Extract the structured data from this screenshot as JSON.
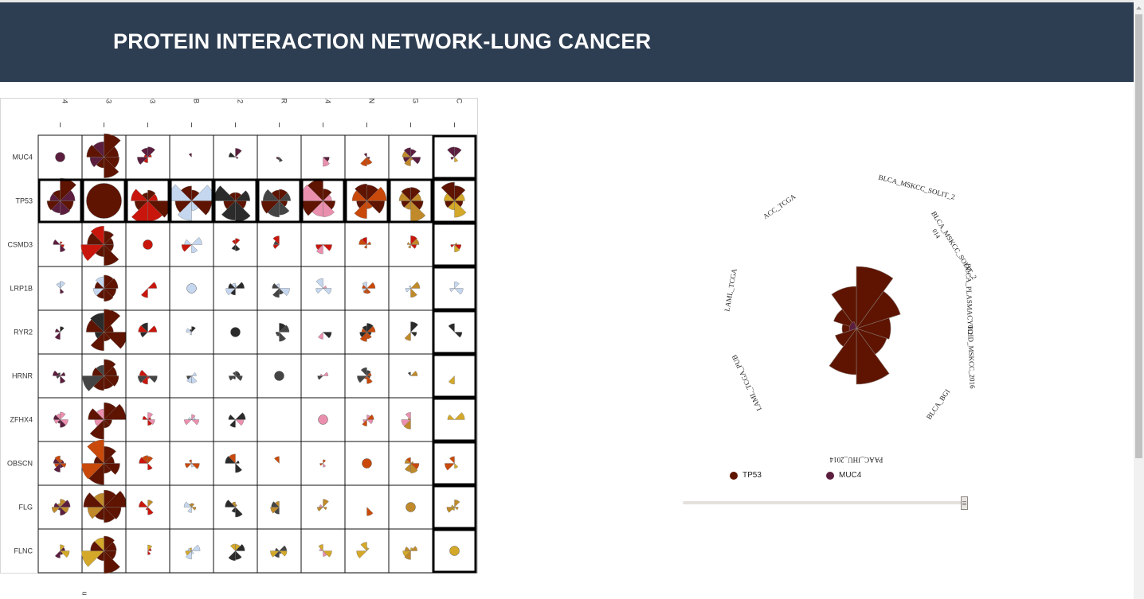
{
  "header": {
    "title": "PROTEIN INTERACTION NETWORK-LUNG CANCER"
  },
  "matrix": {
    "genes": [
      "MUC4",
      "TP53",
      "CSMD3",
      "LRP1B",
      "RYR2",
      "HRNR",
      "ZFHX4",
      "OBSCN",
      "FLG",
      "FLNC"
    ],
    "colors": {
      "MUC4": "#5c1e3e",
      "TP53": "#5e1400",
      "CSMD3": "#c8160c",
      "LRP1B": "#c5d7ef",
      "RYR2": "#2b2b2b",
      "HRNR": "#444444",
      "ZFHX4": "#ea8fae",
      "OBSCN": "#c9490a",
      "FLG": "#c08a2a",
      "FLNC": "#d4a828"
    },
    "highlighted_rows": [
      "TP53"
    ],
    "highlighted_cols": [
      "FLNC"
    ]
  },
  "radial": {
    "labels": [
      "ACC_TCGA",
      "BLCA_MSKCC_SOLIT_2",
      "BLCA_MSKCC_SOLIT_2",
      "BLCA_PLASMACYTOID_MSKCC_2016",
      "BLCA_BGI",
      "PAAC_JHU_2014",
      "LAML_TCGA_PUB",
      "LAML_TCGA",
      "014",
      "012"
    ],
    "legend": [
      {
        "name": "TP53",
        "color": "#5e1400"
      },
      {
        "name": "MUC4",
        "color": "#5c1e3e"
      }
    ]
  },
  "slider": {
    "value": 1.0
  },
  "stray_text": "u"
}
